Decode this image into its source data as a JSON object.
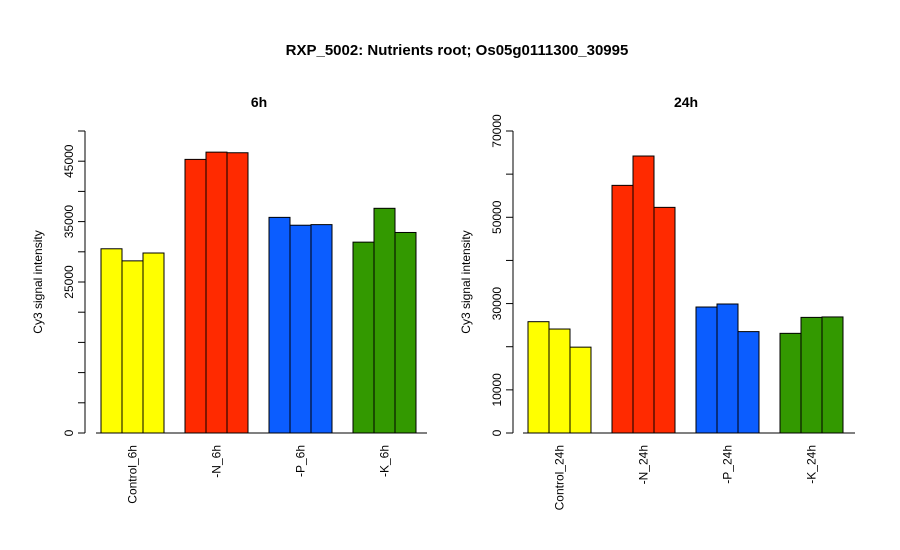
{
  "figure_title": "RXP_5002: Nutrients root; Os05g0111300_30995",
  "chart_data": [
    {
      "type": "bar",
      "title": "6h",
      "xlabel": "",
      "ylabel": "Cy3 signal intensity",
      "ylim": [
        0,
        50000
      ],
      "yticks": [
        0,
        25000,
        35000,
        45000
      ],
      "categories": [
        "Control_6h",
        "-N_6h",
        "-P_6h",
        "-K_6h"
      ],
      "colors": [
        "#ffff00",
        "#ff2a00",
        "#0b5dff",
        "#339900"
      ],
      "values": [
        [
          30500,
          28500,
          29800
        ],
        [
          45300,
          46500,
          46400
        ],
        [
          35700,
          34400,
          34500
        ],
        [
          31600,
          37200,
          33200
        ]
      ],
      "grid": false,
      "legend": "none"
    },
    {
      "type": "bar",
      "title": "24h",
      "xlabel": "",
      "ylabel": "Cy3 signal intensity",
      "ylim": [
        0,
        70000
      ],
      "yticks": [
        0,
        10000,
        30000,
        50000,
        70000
      ],
      "categories": [
        "Control_24h",
        "-N_24h",
        "-P_24h",
        "-K_24h"
      ],
      "colors": [
        "#ffff00",
        "#ff2a00",
        "#0b5dff",
        "#339900"
      ],
      "values": [
        [
          25800,
          24100,
          19900
        ],
        [
          57400,
          64200,
          52300
        ],
        [
          29200,
          29900,
          23500
        ],
        [
          23100,
          26800,
          26900
        ]
      ],
      "grid": false,
      "legend": "none"
    }
  ]
}
